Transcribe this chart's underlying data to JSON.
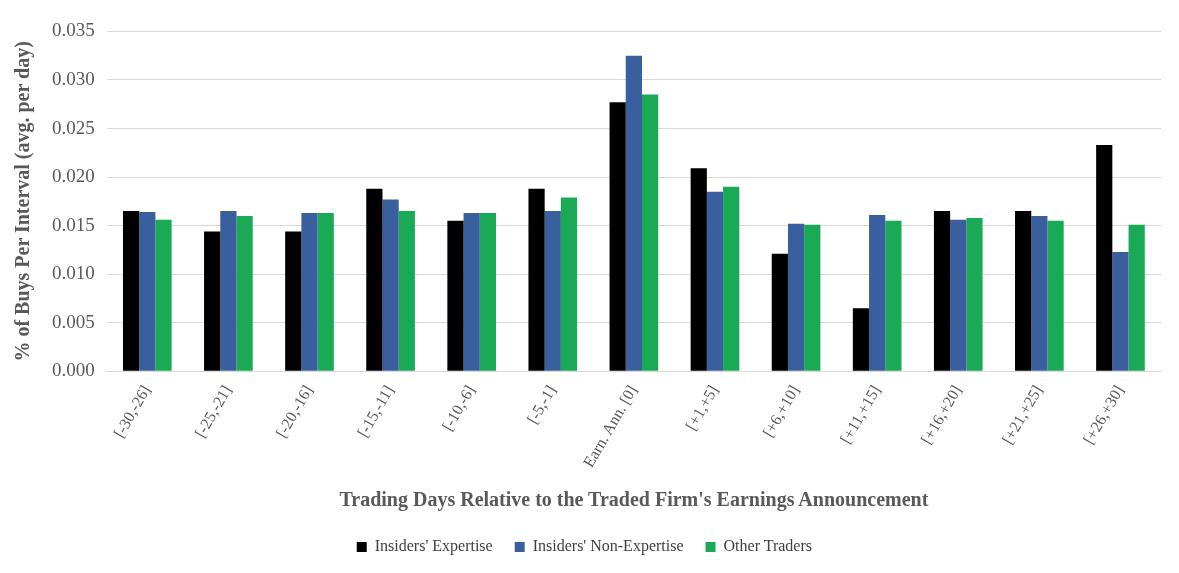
{
  "chart_data": {
    "type": "bar",
    "xlabel": "Trading Days Relative to the Traded Firm's Earnings Announcement",
    "ylabel": "% of Buys Per Interval (avg. per day)",
    "categories": [
      "[-30,-26]",
      "[-25,-21]",
      "[-20,-16]",
      "[-15,-11]",
      "[-10,-6]",
      "[-5,-1]",
      "Earn. Ann. [0]",
      "[+1,+5]",
      "[+6,+10]",
      "[+11,+15]",
      "[+16,+20]",
      "[+21,+25]",
      "[+26,+30]"
    ],
    "series": [
      {
        "name": "Insiders' Expertise",
        "color": "#000000",
        "values": [
          0.0165,
          0.0144,
          0.0144,
          0.0188,
          0.0155,
          0.0188,
          0.0277,
          0.0209,
          0.0121,
          0.0065,
          0.0165,
          0.0165,
          0.0233
        ]
      },
      {
        "name": "Insiders' Non-Expertise",
        "color": "#3a5f9e",
        "values": [
          0.0164,
          0.0165,
          0.0163,
          0.0177,
          0.0163,
          0.0165,
          0.0325,
          0.0185,
          0.0152,
          0.0161,
          0.0156,
          0.016,
          0.0123
        ]
      },
      {
        "name": "Other Traders",
        "color": "#1aaa55",
        "values": [
          0.0156,
          0.016,
          0.0163,
          0.0165,
          0.0163,
          0.0179,
          0.0285,
          0.019,
          0.0151,
          0.0155,
          0.0158,
          0.0155,
          0.0151
        ]
      }
    ],
    "ylim": [
      0,
      0.035
    ],
    "yticks": [
      {
        "value": 0,
        "label": "0.000"
      },
      {
        "value": 0.005,
        "label": "0.005"
      },
      {
        "value": 0.01,
        "label": "0.010"
      },
      {
        "value": 0.015,
        "label": "0.015"
      },
      {
        "value": 0.02,
        "label": "0.020"
      },
      {
        "value": 0.025,
        "label": "0.025"
      },
      {
        "value": 0.03,
        "label": "0.030"
      },
      {
        "value": 0.035,
        "label": "0.035"
      }
    ],
    "grid": "y",
    "legend": "bottom"
  }
}
